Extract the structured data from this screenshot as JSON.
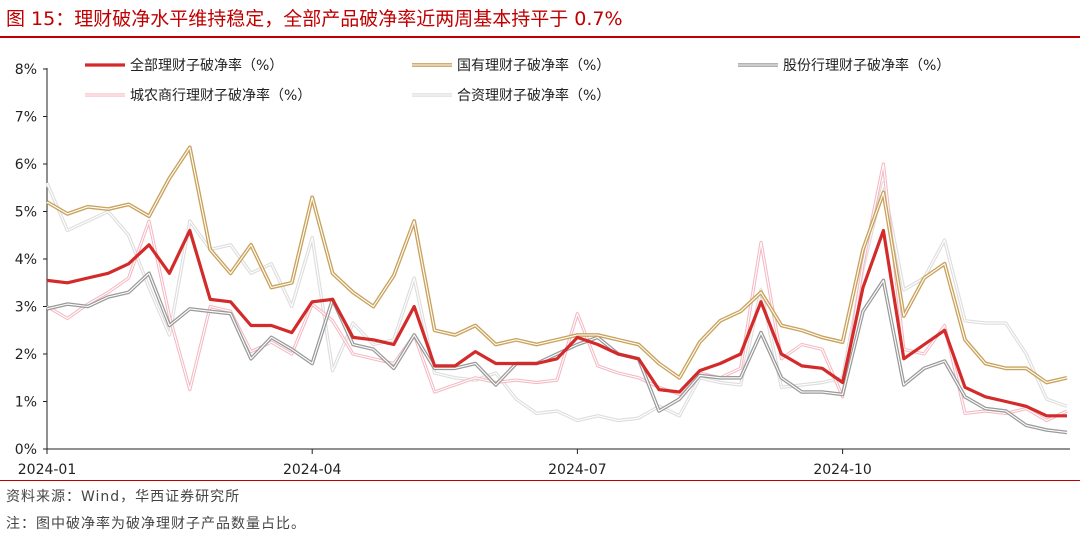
{
  "figure": {
    "title": "图 15：理财破净水平维持稳定，全部产品破净率近两周基本持平于 0.7%",
    "source": "资料来源：Wind，华西证券研究所",
    "note": "注：图中破净率为破净理财子产品数量占比。"
  },
  "colors": {
    "brand": "#c00000",
    "all": "#d32a2a",
    "state": "#c9a35c",
    "joint": "#9a9a9a",
    "rural": "#f4b9c3",
    "jv": "#dedede"
  },
  "chart_data": {
    "type": "line",
    "x_ticks": [
      "2024-01",
      "2024-04",
      "2024-07",
      "2024-10"
    ],
    "x_tick_positions": [
      0,
      13,
      26,
      39
    ],
    "y_ticks": [
      "0%",
      "1%",
      "2%",
      "3%",
      "4%",
      "5%",
      "6%",
      "7%",
      "8%"
    ],
    "ylim": [
      0,
      8
    ],
    "y_unit": "%",
    "grid": false,
    "legend_position": "top",
    "series": [
      {
        "name": "全部理财子破净率（%）",
        "key": "all",
        "values": [
          3.55,
          3.5,
          3.6,
          3.7,
          3.9,
          4.3,
          3.7,
          4.6,
          3.15,
          3.1,
          2.6,
          2.6,
          2.45,
          3.1,
          3.15,
          2.35,
          2.3,
          2.2,
          3.0,
          1.75,
          1.75,
          2.05,
          1.8,
          1.8,
          1.8,
          1.9,
          2.35,
          2.2,
          2.0,
          1.9,
          1.25,
          1.2,
          1.65,
          1.8,
          2.0,
          3.1,
          2.0,
          1.75,
          1.7,
          1.4,
          3.4,
          4.6,
          1.9,
          2.2,
          2.5,
          1.3,
          1.1,
          1.0,
          0.9,
          0.7,
          0.7
        ]
      },
      {
        "name": "国有理财子破净率（%）",
        "key": "state",
        "values": [
          5.2,
          4.95,
          5.1,
          5.05,
          5.15,
          4.9,
          5.7,
          6.35,
          4.2,
          3.7,
          4.3,
          3.4,
          3.5,
          5.3,
          3.7,
          3.3,
          3.0,
          3.65,
          4.8,
          2.5,
          2.4,
          2.6,
          2.2,
          2.3,
          2.2,
          2.3,
          2.4,
          2.4,
          2.3,
          2.2,
          1.8,
          1.5,
          2.25,
          2.7,
          2.9,
          3.3,
          2.6,
          2.5,
          2.35,
          2.25,
          4.2,
          5.4,
          2.8,
          3.6,
          3.9,
          2.3,
          1.8,
          1.7,
          1.7,
          1.4,
          1.5
        ]
      },
      {
        "name": "股份行理财子破净率（%）",
        "key": "joint",
        "values": [
          2.95,
          3.05,
          3.0,
          3.2,
          3.3,
          3.7,
          2.6,
          2.95,
          2.9,
          2.85,
          1.9,
          2.35,
          2.1,
          1.8,
          3.15,
          2.2,
          2.1,
          1.7,
          2.4,
          1.7,
          1.7,
          1.8,
          1.35,
          1.8,
          1.8,
          2.0,
          2.2,
          2.35,
          2.0,
          1.9,
          0.8,
          1.05,
          1.55,
          1.5,
          1.5,
          2.45,
          1.5,
          1.2,
          1.2,
          1.15,
          2.9,
          3.55,
          1.35,
          1.7,
          1.85,
          1.1,
          0.85,
          0.8,
          0.5,
          0.4,
          0.35
        ]
      },
      {
        "name": "城农商行理财子破净率（%）",
        "key": "rural",
        "values": [
          3.0,
          2.75,
          3.05,
          3.3,
          3.6,
          4.8,
          2.8,
          1.25,
          3.0,
          2.9,
          2.05,
          2.25,
          2.0,
          3.05,
          2.7,
          2.0,
          1.9,
          1.8,
          2.4,
          1.2,
          1.35,
          1.5,
          1.4,
          1.45,
          1.4,
          1.45,
          2.85,
          1.75,
          1.6,
          1.5,
          1.3,
          1.15,
          1.6,
          1.5,
          1.7,
          4.35,
          1.9,
          2.2,
          2.1,
          1.1,
          3.9,
          6.0,
          2.1,
          2.0,
          2.6,
          0.75,
          0.8,
          0.75,
          0.85,
          0.6,
          0.8
        ]
      },
      {
        "name": "合资理财子破净率（%）",
        "key": "jv",
        "values": [
          5.6,
          4.6,
          4.8,
          5.0,
          4.5,
          3.4,
          2.4,
          4.8,
          4.2,
          4.3,
          3.7,
          3.9,
          3.0,
          4.45,
          1.65,
          2.65,
          2.2,
          2.3,
          3.6,
          1.6,
          1.5,
          1.45,
          1.6,
          1.05,
          0.75,
          0.8,
          0.6,
          0.7,
          0.6,
          0.65,
          0.9,
          0.7,
          1.5,
          1.4,
          1.35,
          3.35,
          1.3,
          1.35,
          1.4,
          1.5,
          3.8,
          5.6,
          3.35,
          3.6,
          4.4,
          2.7,
          2.65,
          2.65,
          2.0,
          1.05,
          0.9
        ]
      }
    ]
  }
}
